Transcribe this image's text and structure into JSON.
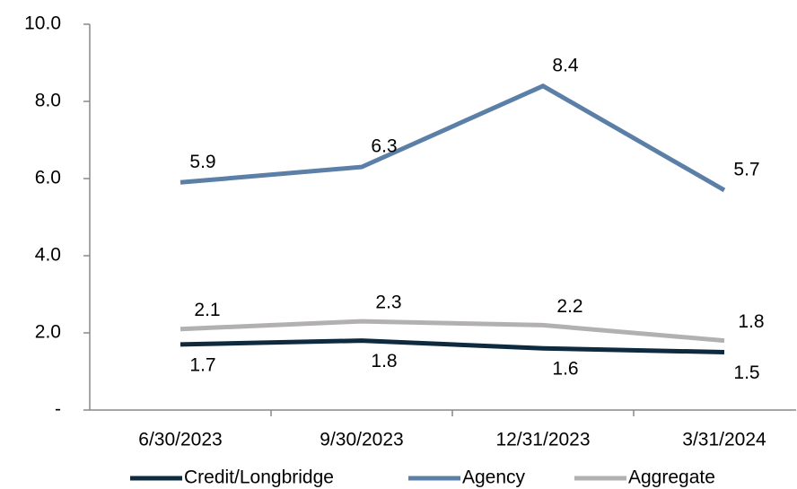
{
  "chart_data": {
    "type": "line",
    "categories": [
      "6/30/2023",
      "9/30/2023",
      "12/31/2023",
      "3/31/2024"
    ],
    "series": [
      {
        "name": "Credit/Longbridge",
        "color": "#0d2a3f",
        "values": [
          1.7,
          1.8,
          1.6,
          1.5
        ]
      },
      {
        "name": "Agency",
        "color": "#5b7fa6",
        "values": [
          5.9,
          6.3,
          8.4,
          5.7
        ]
      },
      {
        "name": "Aggregate",
        "color": "#b3b0b0",
        "values": [
          2.1,
          2.3,
          2.2,
          1.8
        ]
      }
    ],
    "ylim": [
      0,
      10
    ],
    "yticks": [
      {
        "value": 0,
        "label": "-"
      },
      {
        "value": 2,
        "label": "2.0"
      },
      {
        "value": 4,
        "label": "4.0"
      },
      {
        "value": 6,
        "label": "6.0"
      },
      {
        "value": 8,
        "label": "8.0"
      },
      {
        "value": 10,
        "label": "10.0"
      }
    ],
    "legend": "bottom"
  }
}
